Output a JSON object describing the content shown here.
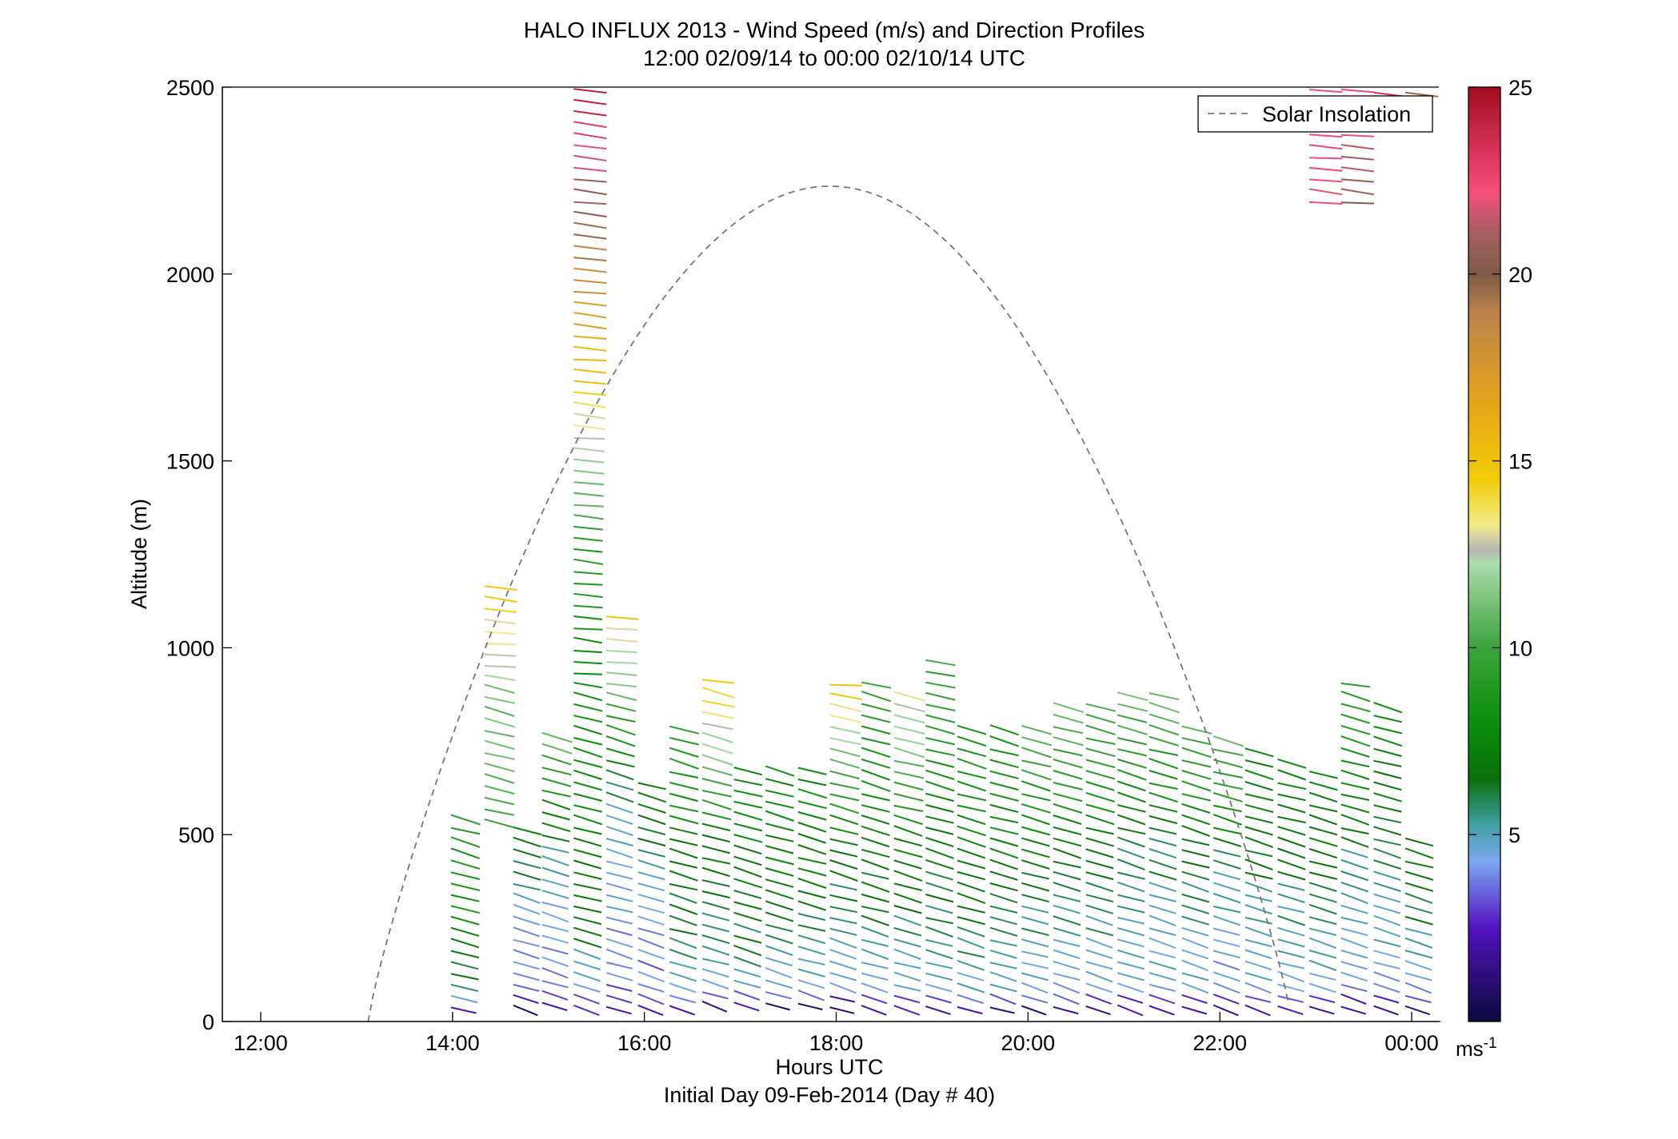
{
  "chart_data": {
    "type": "wind-barb-profile",
    "title": "HALO INFLUX 2013 - Wind Speed (m/s) and Direction Profiles",
    "subtitle": "12:00 02/09/14 to 00:00 02/10/14  UTC",
    "xlabel": "Hours UTC",
    "xlabel2": "Initial Day 09-Feb-2014 (Day # 40)",
    "ylabel": "Altitude (m)",
    "xlim": [
      11.6,
      24.3
    ],
    "ylim": [
      0,
      2500
    ],
    "x_ticks": [
      {
        "value": 12,
        "label": "12:00"
      },
      {
        "value": 14,
        "label": "14:00"
      },
      {
        "value": 16,
        "label": "16:00"
      },
      {
        "value": 18,
        "label": "18:00"
      },
      {
        "value": 20,
        "label": "20:00"
      },
      {
        "value": 22,
        "label": "22:00"
      },
      {
        "value": 24,
        "label": "00:00"
      }
    ],
    "y_ticks": [
      {
        "value": 0,
        "label": "0"
      },
      {
        "value": 500,
        "label": "500"
      },
      {
        "value": 1000,
        "label": "1000"
      },
      {
        "value": 1500,
        "label": "1500"
      },
      {
        "value": 2000,
        "label": "2000"
      },
      {
        "value": 2500,
        "label": "2500"
      }
    ],
    "colorbar": {
      "min": 0,
      "max": 25,
      "unit": "ms-1",
      "ticks": [
        {
          "value": 5,
          "label": "5"
        },
        {
          "value": 10,
          "label": "10"
        },
        {
          "value": 15,
          "label": "15"
        },
        {
          "value": 20,
          "label": "20"
        },
        {
          "value": 25,
          "label": "25"
        }
      ],
      "stops": [
        {
          "v": 0,
          "c": "#0b0a3a"
        },
        {
          "v": 2.5,
          "c": "#5212c0"
        },
        {
          "v": 4.3,
          "c": "#7aa8f0"
        },
        {
          "v": 5.3,
          "c": "#3f9fa0"
        },
        {
          "v": 6.5,
          "c": "#0a6e0a"
        },
        {
          "v": 8.0,
          "c": "#0a8f0a"
        },
        {
          "v": 10.0,
          "c": "#3da23d"
        },
        {
          "v": 12.3,
          "c": "#aedcae"
        },
        {
          "v": 12.6,
          "c": "#b5b5b5"
        },
        {
          "v": 13.3,
          "c": "#f3ec8a"
        },
        {
          "v": 14.5,
          "c": "#f0cd05"
        },
        {
          "v": 16.5,
          "c": "#e7a51a"
        },
        {
          "v": 19.0,
          "c": "#b8824a"
        },
        {
          "v": 20.0,
          "c": "#7f5a48"
        },
        {
          "v": 21.0,
          "c": "#a06060"
        },
        {
          "v": 22.2,
          "c": "#f54e7e"
        },
        {
          "v": 25.0,
          "c": "#a50b1f"
        }
      ]
    },
    "legend": {
      "label": "Solar Insolation",
      "position": "top-right",
      "style": "dashed",
      "color": "#777777"
    },
    "solar_insolation": {
      "rise_hour": 13.12,
      "set_hour": 22.75,
      "peak_hour": 17.95,
      "peak_altitude_equivalent": 2235
    },
    "profiles": [
      {
        "hour": 14.0,
        "top": 550,
        "bottom": 30,
        "sfc": 2.5,
        "mid": 8,
        "high": 9,
        "dir": 1
      },
      {
        "hour": 14.35,
        "top": 1160,
        "bottom": 530,
        "sfc": 10,
        "mid": 11,
        "high": 14.5,
        "dir": 1
      },
      {
        "hour": 14.65,
        "top": 530,
        "bottom": 30,
        "sfc": 1.2,
        "mid": 4.5,
        "high": 8,
        "dir": 1
      },
      {
        "hour": 14.95,
        "top": 780,
        "bottom": 40,
        "sfc": 2,
        "mid": 5,
        "high": 11,
        "dir": 1
      },
      {
        "hour": 15.28,
        "top": 2500,
        "bottom": 30,
        "sfc": 3,
        "mid": 9,
        "high": 24.5,
        "dir": 1
      },
      {
        "hour": 15.62,
        "top": 1100,
        "bottom": 30,
        "sfc": 2,
        "mid": 5,
        "high": 14.5,
        "dir": 1
      },
      {
        "hour": 15.95,
        "top": 650,
        "bottom": 30,
        "sfc": 2,
        "mid": 4.5,
        "high": 8,
        "dir": 1
      },
      {
        "hour": 16.28,
        "top": 800,
        "bottom": 30,
        "sfc": 2,
        "mid": 7,
        "high": 9,
        "dir": 1
      },
      {
        "hour": 16.62,
        "top": 920,
        "bottom": 40,
        "sfc": 1.5,
        "mid": 7,
        "high": 15,
        "dir": 1
      },
      {
        "hour": 16.95,
        "top": 670,
        "bottom": 40,
        "sfc": 2,
        "mid": 7,
        "high": 8,
        "dir": 1
      },
      {
        "hour": 17.28,
        "top": 680,
        "bottom": 40,
        "sfc": 1,
        "mid": 7,
        "high": 8,
        "dir": 1
      },
      {
        "hour": 17.62,
        "top": 690,
        "bottom": 40,
        "sfc": 1,
        "mid": 7,
        "high": 8,
        "dir": 1
      },
      {
        "hour": 17.95,
        "top": 920,
        "bottom": 30,
        "sfc": 1,
        "mid": 7,
        "high": 15,
        "dir": 1
      },
      {
        "hour": 18.28,
        "top": 900,
        "bottom": 30,
        "sfc": 2,
        "mid": 7,
        "high": 10,
        "dir": 1
      },
      {
        "hour": 18.62,
        "top": 880,
        "bottom": 30,
        "sfc": 2,
        "mid": 7,
        "high": 13.5,
        "dir": 1
      },
      {
        "hour": 18.95,
        "top": 960,
        "bottom": 30,
        "sfc": 2,
        "mid": 7,
        "high": 10,
        "dir": 1
      },
      {
        "hour": 19.28,
        "top": 780,
        "bottom": 30,
        "sfc": 1.5,
        "mid": 7,
        "high": 9,
        "dir": 1
      },
      {
        "hour": 19.62,
        "top": 780,
        "bottom": 30,
        "sfc": 1.5,
        "mid": 7,
        "high": 9,
        "dir": 1
      },
      {
        "hour": 19.95,
        "top": 800,
        "bottom": 30,
        "sfc": 1.5,
        "mid": 6.5,
        "high": 11,
        "dir": 1
      },
      {
        "hour": 20.28,
        "top": 840,
        "bottom": 30,
        "sfc": 2,
        "mid": 6.5,
        "high": 11,
        "dir": 1
      },
      {
        "hour": 20.62,
        "top": 860,
        "bottom": 30,
        "sfc": 1.5,
        "mid": 6.5,
        "high": 11,
        "dir": 1
      },
      {
        "hour": 20.95,
        "top": 880,
        "bottom": 30,
        "sfc": 2,
        "mid": 6,
        "high": 11,
        "dir": 1
      },
      {
        "hour": 21.28,
        "top": 880,
        "bottom": 30,
        "sfc": 2,
        "mid": 6,
        "high": 11,
        "dir": 1
      },
      {
        "hour": 21.62,
        "top": 800,
        "bottom": 30,
        "sfc": 2,
        "mid": 6,
        "high": 11,
        "dir": 1
      },
      {
        "hour": 21.95,
        "top": 760,
        "bottom": 30,
        "sfc": 1.5,
        "mid": 5.5,
        "high": 11,
        "dir": 1
      },
      {
        "hour": 22.28,
        "top": 720,
        "bottom": 30,
        "sfc": 2,
        "mid": 6,
        "high": 8,
        "dir": 1
      },
      {
        "hour": 22.62,
        "top": 700,
        "bottom": 30,
        "sfc": 2,
        "mid": 6,
        "high": 8,
        "dir": 1
      },
      {
        "hour": 22.95,
        "top": 680,
        "bottom": 30,
        "sfc": 2,
        "mid": 6,
        "high": 8,
        "dir": 1
      },
      {
        "hour": 23.28,
        "top": 920,
        "bottom": 30,
        "sfc": 1.5,
        "mid": 6,
        "high": 10,
        "dir": 1
      },
      {
        "hour": 23.62,
        "top": 840,
        "bottom": 30,
        "sfc": 1.5,
        "mid": 6,
        "high": 8,
        "dir": 1
      },
      {
        "hour": 23.95,
        "top": 500,
        "bottom": 30,
        "sfc": 1,
        "mid": 6,
        "high": 7,
        "dir": 1
      },
      {
        "hour": 22.95,
        "top": 2500,
        "bottom": 2190,
        "sfc": 22,
        "mid": 22,
        "high": 22,
        "dir": 1
      },
      {
        "hour": 23.28,
        "top": 2500,
        "bottom": 2190,
        "sfc": 20.5,
        "mid": 21,
        "high": 23,
        "dir": 1
      },
      {
        "hour": 23.62,
        "top": 2500,
        "bottom": 2480,
        "sfc": 23,
        "mid": 23,
        "high": 23,
        "dir": 1
      },
      {
        "hour": 23.95,
        "top": 2500,
        "bottom": 2480,
        "sfc": 19,
        "mid": 19,
        "high": 19,
        "dir": 1
      }
    ]
  }
}
